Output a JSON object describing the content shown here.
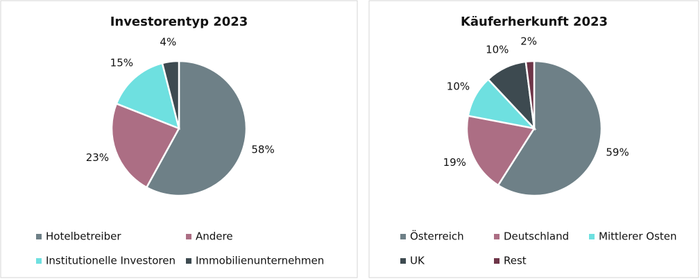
{
  "chart_data": [
    {
      "type": "pie",
      "title": "Investorentyp 2023",
      "categories": [
        "Hotelbetreiber",
        "Andere",
        "Institutionelle Investoren",
        "Immobilienunternehmen"
      ],
      "values": [
        58,
        23,
        15,
        4
      ],
      "value_labels": [
        "58%",
        "23%",
        "15%",
        "4%"
      ],
      "colors": [
        "#6e8087",
        "#ac6e84",
        "#6ee0e0",
        "#3d4a50"
      ]
    },
    {
      "type": "pie",
      "title": "Käuferherkunft 2023",
      "categories": [
        "Österreich",
        "Deutschland",
        "Mittlerer Osten",
        "UK",
        "Rest"
      ],
      "values": [
        59,
        19,
        10,
        10,
        2
      ],
      "value_labels": [
        "59%",
        "19%",
        "10%",
        "10%",
        "2%"
      ],
      "colors": [
        "#6e8087",
        "#ac6e84",
        "#6ee0e0",
        "#3d4a50",
        "#6e3548"
      ]
    }
  ]
}
